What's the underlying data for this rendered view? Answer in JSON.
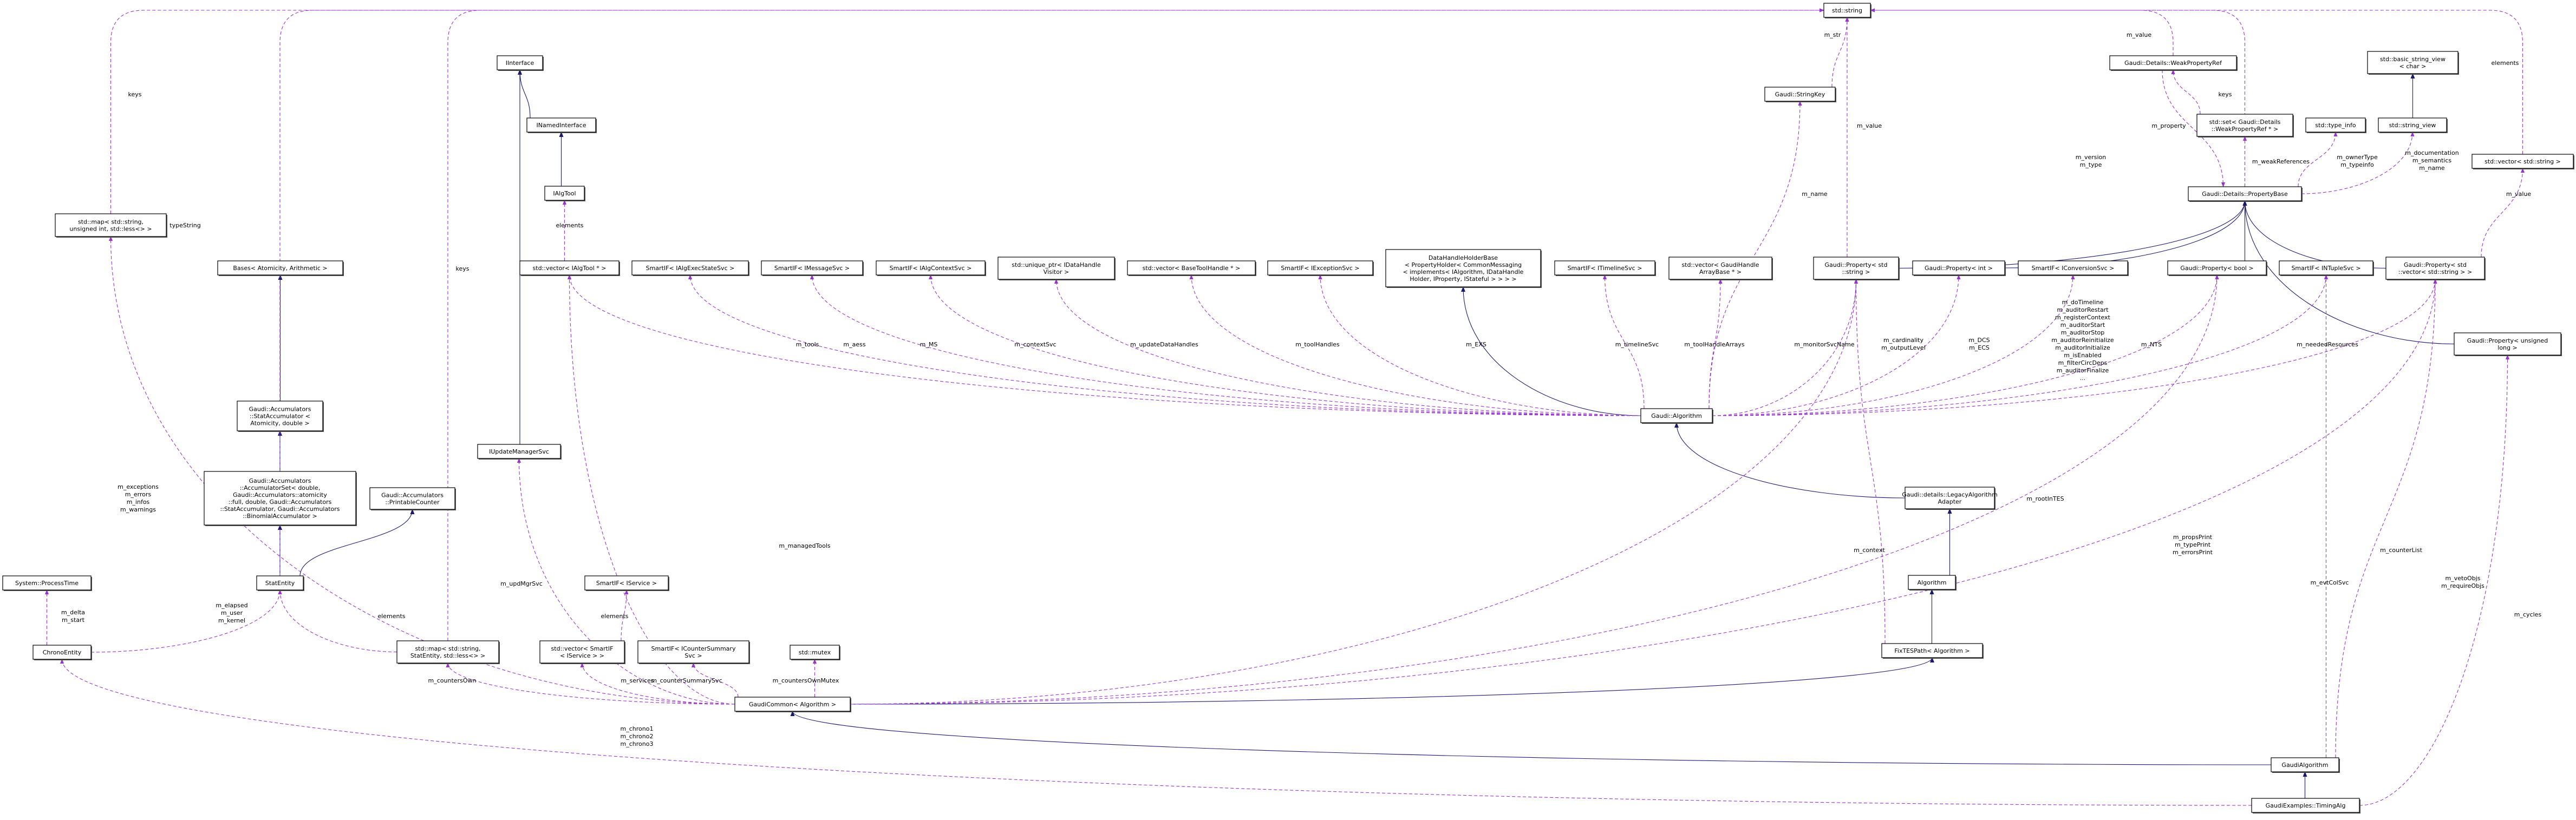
{
  "colors": {
    "usage_edge": "#9a32cd",
    "inheritance_edge": "#191970",
    "node_border": "#000000",
    "incomplete_node_border": "#ff0000",
    "external_node_border": "#bfbfbf",
    "focus_node_fill": "#bfbfbf"
  },
  "diagram": {
    "nodes": [
      {
        "lines": [
          "std::string"
        ],
        "border": "#000000"
      },
      {
        "lines": [
          "Gaudi::StringKey"
        ],
        "border": "#ff0000"
      },
      {
        "lines": [
          "IInterface"
        ],
        "border": "#000000"
      },
      {
        "lines": [
          "INamedInterface"
        ],
        "border": "#000000"
      },
      {
        "lines": [
          "IAlgTool"
        ],
        "border": "#000000"
      },
      {
        "lines": [
          "std::map< std::string,",
          "unsigned int, std::less<> >"
        ],
        "border": "#000000"
      },
      {
        "lines": [
          "Bases< Atomicity, Arithmetic >"
        ],
        "border": "#bfbfbf"
      },
      {
        "lines": [
          "Gaudi::Accumulators",
          "::StatAccumulator <",
          "Atomicity, double >"
        ],
        "border": "#000000"
      },
      {
        "lines": [
          "Gaudi::Accumulators",
          "::AccumulatorSet< double,",
          "Gaudi::Accumulators::atomicity",
          "::full, double, Gaudi::Accumulators",
          "::StatAccumulator, Gaudi::Accumulators",
          "::BinomialAccumulator >"
        ],
        "border": "#000000"
      },
      {
        "lines": [
          "Gaudi::Accumulators",
          "::PrintableCounter"
        ],
        "border": "#000000"
      },
      {
        "lines": [
          "IUpdateManagerSvc"
        ],
        "border": "#000000"
      },
      {
        "lines": [
          "StatEntity"
        ],
        "border": "#000000"
      },
      {
        "lines": [
          "System::ProcessTime"
        ],
        "border": "#000000"
      },
      {
        "lines": [
          "ChronoEntity"
        ],
        "border": "#000000"
      },
      {
        "lines": [
          "std::map< std::string,",
          "StatEntity, std::less<> >"
        ],
        "border": "#000000"
      },
      {
        "lines": [
          "SmartIF< IService >"
        ],
        "border": "#000000"
      },
      {
        "lines": [
          "std::vector< SmartIF",
          "< IService > >"
        ],
        "border": "#000000"
      },
      {
        "lines": [
          "SmartIF< ICounterSummary",
          "Svc >"
        ],
        "border": "#000000"
      },
      {
        "lines": [
          "std::mutex"
        ],
        "border": "#000000"
      },
      {
        "lines": [
          "GaudiCommon< Algorithm >"
        ],
        "border": "#000000"
      },
      {
        "lines": [
          "std::vector< IAlgTool * >"
        ],
        "border": "#000000"
      },
      {
        "lines": [
          "SmartIF< IAlgExecStateSvc >"
        ],
        "border": "#000000"
      },
      {
        "lines": [
          "SmartIF< IMessageSvc >"
        ],
        "border": "#000000"
      },
      {
        "lines": [
          "SmartIF< IAlgContextSvc >"
        ],
        "border": "#000000"
      },
      {
        "lines": [
          "std::unique_ptr< IDataHandle",
          "Visitor >"
        ],
        "border": "#ff0000"
      },
      {
        "lines": [
          "std::vector< BaseToolHandle * >"
        ],
        "border": "#ff0000"
      },
      {
        "lines": [
          "SmartIF< IExceptionSvc >"
        ],
        "border": "#000000"
      },
      {
        "lines": [
          "DataHandleHolderBase",
          "< PropertyHolder< CommonMessaging",
          "< implements< IAlgorithm, IDataHandle",
          "Holder, IProperty, IStateful > > > >"
        ],
        "border": "#ff0000"
      },
      {
        "lines": [
          "SmartIF< ITimelineSvc >"
        ],
        "border": "#000000"
      },
      {
        "lines": [
          "std::vector< GaudiHandle",
          "ArrayBase * >"
        ],
        "border": "#ff0000"
      },
      {
        "lines": [
          "Gaudi::Property< std",
          "::string >"
        ],
        "border": "#000000"
      },
      {
        "lines": [
          "Gaudi::Property< int >"
        ],
        "border": "#000000"
      },
      {
        "lines": [
          "SmartIF< IConversionSvc >"
        ],
        "border": "#000000"
      },
      {
        "lines": [
          "Gaudi::Property< bool >"
        ],
        "border": "#000000"
      },
      {
        "lines": [
          "SmartIF< INTupleSvc >"
        ],
        "border": "#000000"
      },
      {
        "lines": [
          "Gaudi::Property< std",
          "::vector< std::string > >"
        ],
        "border": "#000000"
      },
      {
        "lines": [
          "Gaudi::Property< unsigned",
          "long >"
        ],
        "border": "#000000"
      },
      {
        "lines": [
          "Gaudi::Details::PropertyBase"
        ],
        "border": "#000000"
      },
      {
        "lines": [
          "Gaudi::Details::WeakPropertyRef"
        ],
        "border": "#000000"
      },
      {
        "lines": [
          "std::set< Gaudi::Details",
          "::WeakPropertyRef * >"
        ],
        "border": "#000000"
      },
      {
        "lines": [
          "std::type_info"
        ],
        "border": "#000000"
      },
      {
        "lines": [
          "std::string_view"
        ],
        "border": "#bfbfbf"
      },
      {
        "lines": [
          "std::basic_string_view",
          "< char >"
        ],
        "border": "#bfbfbf"
      },
      {
        "lines": [
          "std::vector< std::string >"
        ],
        "border": "#000000"
      },
      {
        "lines": [
          "Gaudi::Algorithm"
        ],
        "border": "#ff0000"
      },
      {
        "lines": [
          "Gaudi::details::LegacyAlgorithm",
          "Adapter"
        ],
        "border": "#000000"
      },
      {
        "lines": [
          "Algorithm"
        ],
        "border": "#000000"
      },
      {
        "lines": [
          "FixTESPath< Algorithm >"
        ],
        "border": "#000000"
      },
      {
        "lines": [
          "GaudiAlgorithm"
        ],
        "border": "#000000"
      },
      {
        "lines": [
          "GaudiExamples::TimingAlg"
        ],
        "border": "#000000",
        "fill": "#bfbfbf"
      }
    ],
    "edges": [
      {
        "from": 3,
        "to": 2,
        "kind": "inheritance"
      },
      {
        "from": 4,
        "to": 3,
        "kind": "inheritance"
      },
      {
        "from": 10,
        "to": 2,
        "kind": "inheritance"
      },
      {
        "from": 7,
        "to": 6,
        "kind": "inheritance"
      },
      {
        "from": 8,
        "to": 7,
        "kind": "inheritance"
      },
      {
        "from": 11,
        "to": 8,
        "kind": "inheritance"
      },
      {
        "from": 11,
        "to": 9,
        "kind": "inheritance"
      },
      {
        "from": 44,
        "to": 27,
        "kind": "inheritance"
      },
      {
        "from": 45,
        "to": 44,
        "kind": "inheritance"
      },
      {
        "from": 46,
        "to": 45,
        "kind": "inheritance"
      },
      {
        "from": 47,
        "to": 46,
        "kind": "inheritance"
      },
      {
        "from": 19,
        "to": 47,
        "kind": "inheritance"
      },
      {
        "from": 48,
        "to": 19,
        "kind": "inheritance"
      },
      {
        "from": 49,
        "to": 48,
        "kind": "inheritance"
      },
      {
        "from": 41,
        "to": 42,
        "kind": "inheritance"
      },
      {
        "from": 30,
        "to": 37,
        "kind": "inheritance"
      },
      {
        "from": 31,
        "to": 37,
        "kind": "inheritance"
      },
      {
        "from": 33,
        "to": 37,
        "kind": "inheritance"
      },
      {
        "from": 35,
        "to": 37,
        "kind": "inheritance"
      },
      {
        "from": 36,
        "to": 37,
        "kind": "inheritance"
      },
      {
        "from": 1,
        "to": 0,
        "kind": "usage",
        "label": [
          "m_str"
        ]
      },
      {
        "from": 30,
        "to": 0,
        "kind": "usage",
        "label": [
          "m_value"
        ]
      },
      {
        "from": 44,
        "to": 1,
        "kind": "usage",
        "label": [
          "m_name"
        ]
      },
      {
        "from": 37,
        "to": 0,
        "kind": "usage",
        "label": [
          "m_version",
          "m_type"
        ]
      },
      {
        "from": 38,
        "to": 0,
        "kind": "usage",
        "label": [
          "m_value"
        ]
      },
      {
        "from": 43,
        "to": 0,
        "kind": "usage",
        "label": [
          "elements"
        ]
      },
      {
        "from": 5,
        "to": 0,
        "kind": "usage",
        "label": [
          "keys"
        ]
      },
      {
        "from": 11,
        "to": 0,
        "kind": "usage",
        "label": [
          "typeString"
        ]
      },
      {
        "from": 14,
        "to": 0,
        "kind": "usage",
        "label": [
          "keys"
        ]
      },
      {
        "from": 39,
        "to": 38,
        "kind": "usage",
        "label": [
          "keys"
        ]
      },
      {
        "from": 38,
        "to": 37,
        "kind": "usage",
        "label": [
          "m_property"
        ]
      },
      {
        "from": 37,
        "to": 39,
        "kind": "usage",
        "label": [
          "m_weakReferences"
        ]
      },
      {
        "from": 37,
        "to": 40,
        "kind": "usage",
        "label": [
          "m_ownerType",
          "m_typeinfo"
        ]
      },
      {
        "from": 37,
        "to": 41,
        "kind": "usage",
        "label": [
          "m_documentation",
          "m_semantics",
          "m_name"
        ]
      },
      {
        "from": 35,
        "to": 43,
        "kind": "usage",
        "label": [
          "m_value"
        ]
      },
      {
        "from": 20,
        "to": 4,
        "kind": "usage",
        "label": [
          "elements"
        ]
      },
      {
        "from": 44,
        "to": 20,
        "kind": "usage",
        "label": [
          "m_tools"
        ]
      },
      {
        "from": 44,
        "to": 21,
        "kind": "usage",
        "label": [
          "m_aess"
        ]
      },
      {
        "from": 44,
        "to": 22,
        "kind": "usage",
        "label": [
          "m_MS"
        ]
      },
      {
        "from": 44,
        "to": 23,
        "kind": "usage",
        "label": [
          "m_contextSvc"
        ]
      },
      {
        "from": 44,
        "to": 24,
        "kind": "usage",
        "label": [
          "m_updateDataHandles"
        ]
      },
      {
        "from": 44,
        "to": 25,
        "kind": "usage",
        "label": [
          "m_toolHandles"
        ]
      },
      {
        "from": 44,
        "to": 26,
        "kind": "usage",
        "label": [
          "m_EXS"
        ]
      },
      {
        "from": 44,
        "to": 28,
        "kind": "usage",
        "label": [
          "m_timelineSvc"
        ]
      },
      {
        "from": 44,
        "to": 29,
        "kind": "usage",
        "label": [
          "m_toolHandleArrays"
        ]
      },
      {
        "from": 44,
        "to": 30,
        "kind": "usage",
        "label": [
          "m_monitorSvcName"
        ]
      },
      {
        "from": 44,
        "to": 31,
        "kind": "usage",
        "label": [
          "m_cardinality",
          "m_outputLevel"
        ]
      },
      {
        "from": 44,
        "to": 32,
        "kind": "usage",
        "label": [
          "m_DCS",
          "m_ECS"
        ]
      },
      {
        "from": 44,
        "to": 33,
        "kind": "usage",
        "label": [
          "m_doTimeline",
          "m_auditorRestart",
          "m_registerContext",
          "m_auditorStart",
          "m_auditorStop",
          "m_auditorReinitialize",
          "m_auditorInitialize",
          "m_isEnabled",
          "m_filterCircDeps",
          "m_auditorFinalize",
          "..."
        ]
      },
      {
        "from": 44,
        "to": 34,
        "kind": "usage",
        "label": [
          "m_NTS"
        ]
      },
      {
        "from": 44,
        "to": 35,
        "kind": "usage",
        "label": [
          "m_neededResources"
        ]
      },
      {
        "from": 19,
        "to": 5,
        "kind": "usage",
        "label": [
          "m_exceptions",
          "m_errors",
          "m_infos",
          "m_warnings"
        ]
      },
      {
        "from": 19,
        "to": 20,
        "kind": "usage",
        "label": [
          "m_managedTools"
        ]
      },
      {
        "from": 19,
        "to": 10,
        "kind": "usage",
        "label": [
          "m_updMgrSvc"
        ]
      },
      {
        "from": 19,
        "to": 14,
        "kind": "usage",
        "label": [
          "m_countersOwn"
        ]
      },
      {
        "from": 19,
        "to": 16,
        "kind": "usage",
        "label": [
          "m_services"
        ]
      },
      {
        "from": 19,
        "to": 17,
        "kind": "usage",
        "label": [
          "m_counterSummarySvc"
        ]
      },
      {
        "from": 19,
        "to": 18,
        "kind": "usage",
        "label": [
          "m_countersOwnMutex"
        ]
      },
      {
        "from": 19,
        "to": 30,
        "kind": "usage",
        "label": [
          "m_context"
        ]
      },
      {
        "from": 47,
        "to": 30,
        "kind": "usage",
        "label": [
          "m_rootInTES"
        ]
      },
      {
        "from": 19,
        "to": 33,
        "kind": "usage",
        "label": [
          "m_propsPrint",
          "m_typePrint",
          "m_errorsPrint"
        ]
      },
      {
        "from": 19,
        "to": 35,
        "kind": "usage",
        "label": [
          "m_counterList"
        ]
      },
      {
        "from": 48,
        "to": 34,
        "kind": "usage",
        "label": [
          "m_evtColSvc"
        ]
      },
      {
        "from": 48,
        "to": 35,
        "kind": "usage",
        "label": [
          "m_vetoObjs",
          "m_requireObjs"
        ]
      },
      {
        "from": 13,
        "to": 12,
        "kind": "usage",
        "label": [
          "m_delta",
          "m_start"
        ]
      },
      {
        "from": 13,
        "to": 11,
        "kind": "usage",
        "label": [
          "m_elapsed",
          "m_user",
          "m_kernel"
        ]
      },
      {
        "from": 14,
        "to": 11,
        "kind": "usage",
        "label": [
          "elements"
        ]
      },
      {
        "from": 16,
        "to": 15,
        "kind": "usage",
        "label": [
          "elements"
        ]
      },
      {
        "from": 49,
        "to": 13,
        "kind": "usage",
        "label": [
          "m_chrono1",
          "m_chrono2",
          "m_chrono3"
        ]
      },
      {
        "from": 49,
        "to": 36,
        "kind": "usage",
        "label": [
          "m_cycles"
        ]
      }
    ]
  }
}
